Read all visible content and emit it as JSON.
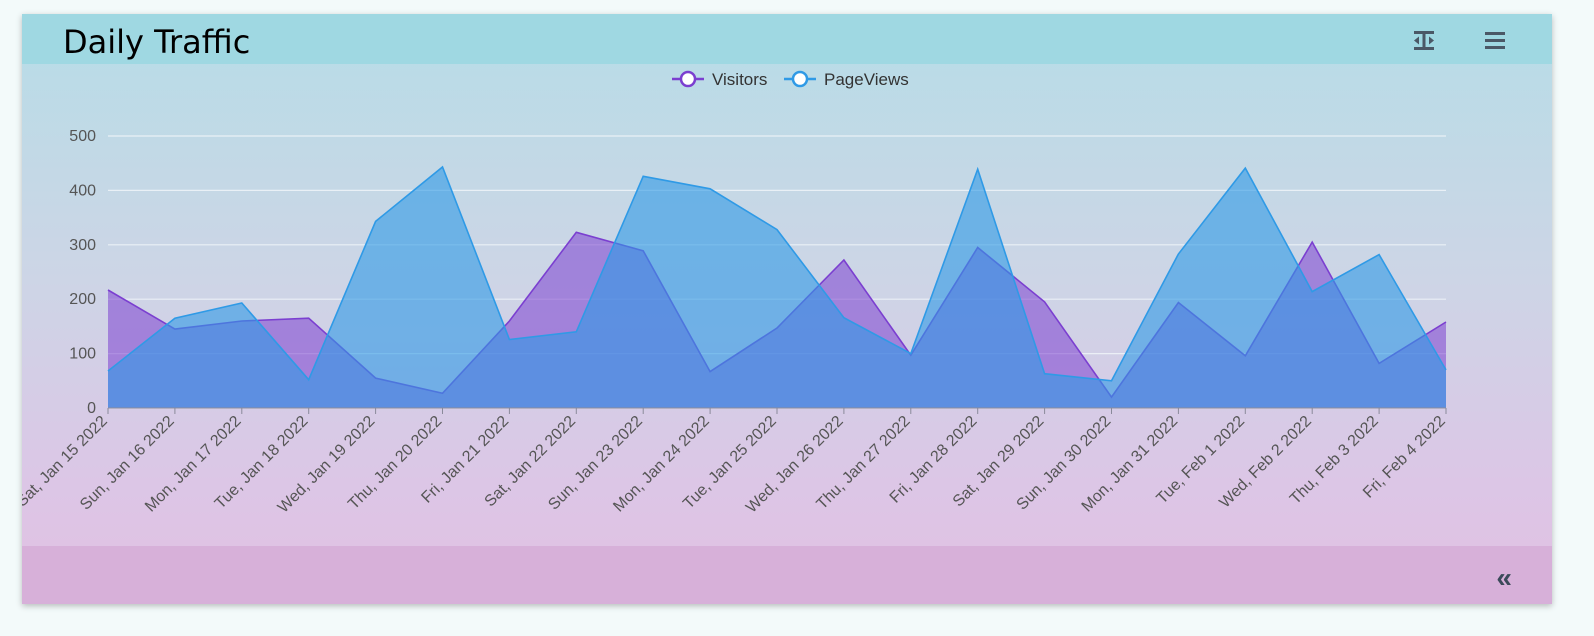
{
  "card": {
    "title": "Daily Traffic",
    "toolbar": {
      "fit_icon": "text-height-icon",
      "menu_icon": "hamburger-menu-icon"
    },
    "footer": {
      "collapse_icon": "double-chevron-left-icon",
      "collapse_label": "«"
    }
  },
  "colors": {
    "visitors": "#7b3fd0",
    "pageviews": "#2f9ae6",
    "grid": "#e6eef4",
    "axis_text": "#555"
  },
  "chart_data": {
    "type": "area",
    "title": "",
    "xlabel": "",
    "ylabel": "",
    "ylim": [
      0,
      500
    ],
    "yticks": [
      0,
      100,
      200,
      300,
      400,
      500
    ],
    "grid": true,
    "legend_position": "top-center",
    "categories": [
      "Sat, Jan 15 2022",
      "Sun, Jan 16 2022",
      "Mon, Jan 17 2022",
      "Tue, Jan 18 2022",
      "Wed, Jan 19 2022",
      "Thu, Jan 20 2022",
      "Fri, Jan 21 2022",
      "Sat, Jan 22 2022",
      "Sun, Jan 23 2022",
      "Mon, Jan 24 2022",
      "Tue, Jan 25 2022",
      "Wed, Jan 26 2022",
      "Thu, Jan 27 2022",
      "Fri, Jan 28 2022",
      "Sat, Jan 29 2022",
      "Sun, Jan 30 2022",
      "Mon, Jan 31 2022",
      "Tue, Feb 1 2022",
      "Wed, Feb 2 2022",
      "Thu, Feb 3 2022",
      "Fri, Feb 4 2022"
    ],
    "series": [
      {
        "name": "Visitors",
        "values": [
          217,
          145,
          160,
          165,
          55,
          27,
          160,
          323,
          289,
          67,
          147,
          272,
          97,
          295,
          195,
          20,
          194,
          96,
          305,
          82,
          158
        ]
      },
      {
        "name": "PageViews",
        "values": [
          68,
          165,
          193,
          52,
          343,
          443,
          126,
          140,
          426,
          403,
          328,
          166,
          100,
          439,
          63,
          50,
          283,
          441,
          214,
          282,
          70
        ]
      }
    ]
  }
}
